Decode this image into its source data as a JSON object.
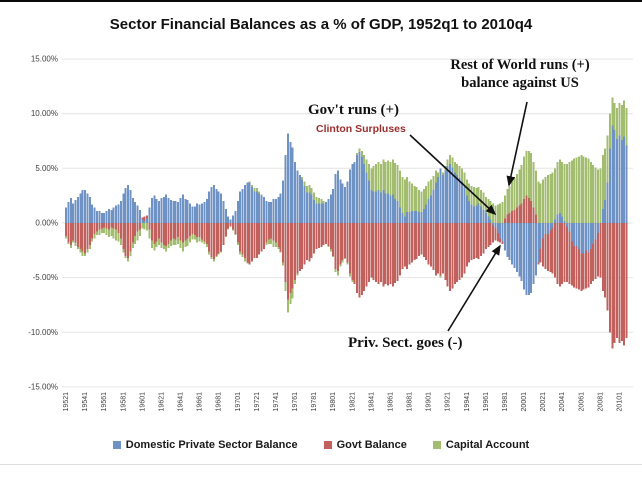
{
  "title": "Sector Financial Balances as a % of GDP, 1952q1 to 2010q4",
  "annotations": {
    "rest_of_world_line1": "Rest of World runs (+)",
    "rest_of_world_line2": "balance against US",
    "govt_runs": "Gov't runs (+)",
    "clinton": "Clinton Surpluses",
    "clinton_color": "#9b2d2b",
    "priv_sect": "Priv. Sect. goes (-)"
  },
  "chart_data": {
    "type": "bar",
    "stacked": true,
    "frequency": "quarterly",
    "x_start": "1952q1",
    "x_end": "2010q4",
    "ylim": [
      -15,
      15
    ],
    "grid": "horizontal",
    "legend_position": "bottom",
    "y_tick_values": [
      15,
      10,
      5,
      0,
      -5,
      -10,
      -15
    ],
    "y_tick_labels": [
      "15.00%",
      "10.00%",
      "5.00%",
      "0.00%",
      "-5.00%",
      "-10.00%",
      "-15.00%"
    ],
    "x_tick_every_n_bars": 8,
    "x_tick_labels": [
      "19521",
      "19541",
      "19561",
      "19581",
      "19601",
      "19621",
      "19641",
      "19661",
      "19681",
      "19701",
      "19721",
      "19741",
      "19761",
      "19781",
      "19801",
      "19821",
      "19841",
      "19861",
      "19881",
      "19901",
      "19921",
      "19941",
      "19961",
      "19981",
      "20001",
      "20021",
      "20041",
      "20061",
      "20081",
      "20101"
    ],
    "series": [
      {
        "name": "Domestic Private Sector Balance",
        "color": "#6e92c4",
        "values": [
          1.4,
          1.9,
          2.3,
          1.8,
          2.1,
          2.4,
          2.7,
          3.0,
          3.0,
          2.7,
          2.4,
          1.7,
          1.4,
          1.1,
          1.1,
          0.9,
          0.9,
          1.1,
          1.3,
          1.2,
          1.4,
          1.6,
          1.7,
          2.0,
          2.7,
          3.2,
          3.5,
          3.0,
          2.3,
          1.9,
          1.6,
          1.2,
          0.3,
          0.2,
          0.4,
          1.4,
          2.3,
          2.5,
          2.2,
          2.0,
          2.3,
          2.4,
          2.6,
          2.3,
          2.1,
          2.0,
          2.0,
          1.9,
          2.3,
          2.6,
          2.2,
          2.1,
          1.8,
          1.5,
          1.5,
          1.8,
          1.7,
          1.8,
          1.9,
          2.2,
          2.9,
          3.3,
          3.5,
          3.1,
          2.9,
          2.7,
          2.0,
          1.3,
          0.6,
          0.3,
          0.7,
          1.1,
          2.0,
          2.9,
          3.1,
          3.5,
          3.7,
          3.7,
          3.3,
          2.9,
          2.9,
          2.7,
          2.5,
          2.4,
          2.0,
          1.9,
          1.9,
          2.2,
          2.2,
          2.4,
          2.7,
          3.9,
          6.2,
          8.2,
          7.4,
          6.9,
          5.6,
          4.8,
          4.4,
          4.0,
          3.4,
          2.8,
          2.8,
          2.6,
          2.1,
          1.8,
          1.8,
          1.8,
          1.8,
          1.9,
          2.2,
          2.6,
          3.1,
          4.5,
          4.8,
          4.0,
          3.6,
          3.3,
          3.8,
          4.9,
          5.4,
          5.6,
          6.2,
          6.5,
          6.1,
          5.4,
          4.6,
          3.9,
          3.0,
          2.9,
          2.9,
          3.0,
          2.8,
          3.0,
          2.7,
          2.7,
          2.5,
          2.6,
          2.2,
          2.0,
          1.4,
          0.9,
          0.6,
          1.0,
          1.0,
          1.1,
          1.1,
          1.1,
          1.0,
          1.0,
          1.3,
          1.7,
          2.2,
          2.5,
          3.0,
          3.7,
          4.2,
          5.0,
          4.4,
          4.8,
          5.2,
          5.4,
          5.1,
          4.6,
          4.4,
          4.1,
          3.8,
          3.3,
          2.5,
          2.0,
          1.7,
          1.5,
          1.6,
          1.8,
          1.5,
          1.2,
          0.9,
          0.6,
          0.3,
          -0.2,
          -0.4,
          -0.9,
          -1.4,
          -1.7,
          -2.5,
          -3.1,
          -3.4,
          -3.8,
          -4.1,
          -4.5,
          -4.9,
          -5.3,
          -6.1,
          -6.6,
          -6.6,
          -6.4,
          -5.6,
          -4.8,
          -3.6,
          -2.4,
          -1.4,
          -1.0,
          -1.0,
          -0.7,
          -0.4,
          0.3,
          0.8,
          0.9,
          0.6,
          0.2,
          -0.3,
          -0.8,
          -1.7,
          -2.1,
          -2.1,
          -2.4,
          -2.8,
          -2.8,
          -2.5,
          -2.7,
          -2.4,
          -1.9,
          -1.5,
          -0.9,
          0.0,
          1.3,
          2.1,
          3.7,
          6.8,
          8.9,
          8.5,
          7.7,
          8.0,
          7.6,
          7.9,
          7.1
        ]
      },
      {
        "name": "Govt Balance",
        "color": "#c0615e",
        "values": [
          -1.2,
          -1.8,
          -2.0,
          -1.6,
          -1.8,
          -2.2,
          -2.4,
          -2.6,
          -2.8,
          -2.4,
          -2.0,
          -1.4,
          -1.0,
          -0.8,
          -0.6,
          -0.5,
          -0.4,
          -0.5,
          -0.6,
          -0.4,
          -0.5,
          -0.6,
          -0.9,
          -1.4,
          -2.4,
          -3.0,
          -3.2,
          -2.6,
          -1.8,
          -1.2,
          -0.8,
          -0.6,
          0.2,
          0.4,
          0.3,
          -0.6,
          -1.6,
          -1.9,
          -1.7,
          -1.4,
          -1.8,
          -2.0,
          -2.1,
          -1.9,
          -1.6,
          -1.4,
          -1.5,
          -1.3,
          -1.6,
          -1.8,
          -1.6,
          -1.4,
          -1.2,
          -1.0,
          -1.1,
          -1.3,
          -1.3,
          -1.5,
          -1.7,
          -1.9,
          -2.6,
          -3.1,
          -3.3,
          -3.0,
          -2.8,
          -2.6,
          -2.0,
          -1.2,
          -0.5,
          -0.3,
          -0.6,
          -1.0,
          -1.8,
          -2.6,
          -2.9,
          -3.2,
          -3.6,
          -3.8,
          -3.5,
          -3.2,
          -3.2,
          -2.9,
          -2.6,
          -2.4,
          -1.8,
          -1.5,
          -1.4,
          -1.6,
          -1.8,
          -2.2,
          -2.6,
          -3.6,
          -5.4,
          -7.0,
          -6.4,
          -6.0,
          -5.2,
          -4.6,
          -4.4,
          -4.2,
          -3.8,
          -3.4,
          -3.5,
          -3.2,
          -2.8,
          -2.4,
          -2.3,
          -2.2,
          -2.0,
          -1.9,
          -2.1,
          -2.4,
          -3.0,
          -4.2,
          -4.4,
          -3.8,
          -3.4,
          -3.2,
          -3.6,
          -4.6,
          -5.2,
          -5.6,
          -6.4,
          -6.8,
          -6.6,
          -6.2,
          -5.8,
          -5.4,
          -5.0,
          -5.2,
          -5.4,
          -5.6,
          -5.4,
          -5.8,
          -5.6,
          -5.7,
          -5.6,
          -5.8,
          -5.5,
          -5.3,
          -4.8,
          -4.2,
          -4.0,
          -4.2,
          -3.8,
          -3.6,
          -3.4,
          -3.3,
          -3.0,
          -2.9,
          -3.1,
          -3.4,
          -3.8,
          -4.0,
          -4.3,
          -4.8,
          -4.6,
          -4.8,
          -4.6,
          -5.2,
          -5.8,
          -6.2,
          -6.0,
          -5.6,
          -5.4,
          -5.2,
          -5.0,
          -4.6,
          -4.0,
          -3.6,
          -3.4,
          -3.3,
          -3.2,
          -3.3,
          -3.0,
          -2.8,
          -2.4,
          -2.2,
          -2.0,
          -1.6,
          -1.2,
          -0.8,
          -0.4,
          -0.2,
          0.4,
          0.8,
          0.9,
          1.1,
          1.2,
          1.4,
          1.6,
          1.8,
          2.2,
          2.5,
          2.3,
          2.0,
          1.4,
          0.8,
          -0.2,
          -1.2,
          -2.6,
          -3.2,
          -3.4,
          -3.8,
          -4.2,
          -5.0,
          -5.6,
          -5.8,
          -5.6,
          -5.4,
          -5.1,
          -4.8,
          -4.0,
          -3.8,
          -3.9,
          -3.7,
          -3.4,
          -3.3,
          -3.5,
          -3.2,
          -3.2,
          -3.4,
          -3.6,
          -4.0,
          -5.0,
          -6.2,
          -6.8,
          -8.0,
          -10.0,
          -11.5,
          -11.0,
          -10.5,
          -11.0,
          -10.8,
          -11.2,
          -10.5
        ]
      },
      {
        "name": "Capital Account",
        "color": "#a3bd70",
        "values": [
          -0.2,
          -0.1,
          -0.3,
          -0.2,
          -0.3,
          -0.2,
          -0.3,
          -0.4,
          -0.2,
          -0.3,
          -0.4,
          -0.3,
          -0.4,
          -0.3,
          -0.5,
          -0.4,
          -0.5,
          -0.6,
          -0.7,
          -0.8,
          -0.9,
          -1.0,
          -0.8,
          -0.6,
          -0.3,
          -0.2,
          -0.3,
          -0.4,
          -0.5,
          -0.7,
          -0.8,
          -0.6,
          -0.5,
          -0.6,
          -0.7,
          -0.8,
          -0.7,
          -0.6,
          -0.5,
          -0.6,
          -0.5,
          -0.4,
          -0.5,
          -0.4,
          -0.5,
          -0.6,
          -0.5,
          -0.6,
          -0.7,
          -0.8,
          -0.6,
          -0.7,
          -0.6,
          -0.5,
          -0.4,
          -0.5,
          -0.4,
          -0.3,
          -0.2,
          -0.3,
          -0.3,
          -0.2,
          -0.2,
          -0.1,
          -0.1,
          -0.1,
          0.0,
          -0.1,
          -0.1,
          0.0,
          -0.1,
          -0.1,
          -0.2,
          -0.3,
          -0.2,
          -0.3,
          -0.1,
          0.1,
          0.2,
          0.3,
          0.3,
          0.2,
          0.1,
          0.0,
          -0.2,
          -0.4,
          -0.5,
          -0.6,
          -0.4,
          -0.2,
          -0.1,
          -0.3,
          -0.8,
          -1.2,
          -1.0,
          -0.9,
          -0.4,
          -0.2,
          0.0,
          0.2,
          0.4,
          0.6,
          0.7,
          0.6,
          0.7,
          0.6,
          0.5,
          0.4,
          0.2,
          0.0,
          -0.1,
          -0.2,
          -0.1,
          -0.3,
          -0.4,
          -0.2,
          -0.2,
          -0.1,
          -0.2,
          -0.3,
          -0.2,
          0.0,
          0.2,
          0.3,
          0.5,
          0.8,
          1.2,
          1.5,
          2.0,
          2.3,
          2.5,
          2.6,
          2.6,
          2.8,
          2.9,
          3.0,
          3.1,
          3.2,
          3.3,
          3.3,
          3.4,
          3.3,
          3.4,
          3.2,
          2.8,
          2.5,
          2.3,
          2.2,
          2.0,
          1.9,
          1.8,
          1.7,
          1.6,
          1.5,
          1.3,
          1.1,
          0.4,
          -0.2,
          0.2,
          0.4,
          0.6,
          0.8,
          0.9,
          1.0,
          1.0,
          1.1,
          1.2,
          1.3,
          1.5,
          1.6,
          1.7,
          1.8,
          1.6,
          1.5,
          1.5,
          1.6,
          1.5,
          1.6,
          1.7,
          1.8,
          1.6,
          1.7,
          1.8,
          1.9,
          2.1,
          2.3,
          2.5,
          2.7,
          2.9,
          3.1,
          3.3,
          3.5,
          3.9,
          4.1,
          4.3,
          4.4,
          4.2,
          4.0,
          3.8,
          3.6,
          4.0,
          4.2,
          4.4,
          4.5,
          4.6,
          4.7,
          4.8,
          4.9,
          5.0,
          5.2,
          5.4,
          5.6,
          5.7,
          5.9,
          6.0,
          6.1,
          6.2,
          6.1,
          6.0,
          5.9,
          5.6,
          5.3,
          5.1,
          4.9,
          5.0,
          4.9,
          4.7,
          4.3,
          3.2,
          2.6,
          2.5,
          2.8,
          3.0,
          3.2,
          3.3,
          3.4
        ]
      }
    ]
  }
}
